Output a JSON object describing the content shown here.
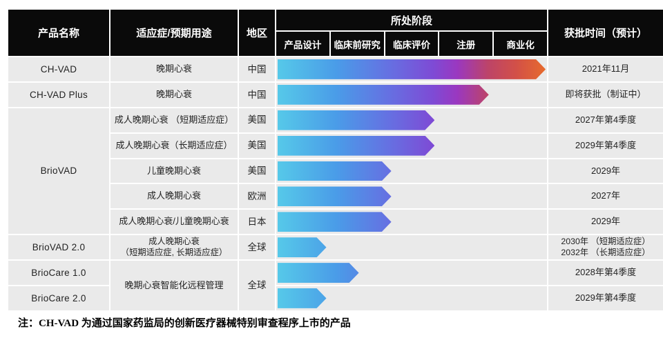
{
  "header": {
    "product": "产品名称",
    "indication": "适应症/预期用途",
    "region": "地区",
    "stage_group": "所处阶段",
    "stages": [
      "产品设计",
      "临床前研究",
      "临床评价",
      "注册",
      "商业化"
    ],
    "approval": "获批时间（预计）"
  },
  "rows": [
    {
      "product": "CH-VAD",
      "indication": "晚期心衰",
      "region": "中国",
      "progress_pct": 99,
      "stage_reached": "商业化",
      "approval": "2021年11月"
    },
    {
      "product": "CH-VAD Plus",
      "indication": "晚期心衰",
      "region": "中国",
      "progress_pct": 78,
      "stage_reached": "注册",
      "approval": "即将获批（制证中）"
    },
    {
      "product": "BrioVAD",
      "indication": "成人晚期心衰 （短期适应症）",
      "region": "美国",
      "progress_pct": 58,
      "stage_reached": "临床评价",
      "approval": "2027年第4季度"
    },
    {
      "product": "BrioVAD",
      "indication": "成人晚期心衰（长期适应症）",
      "region": "美国",
      "progress_pct": 58,
      "stage_reached": "临床评价",
      "approval": "2029年第4季度"
    },
    {
      "product": "BrioVAD",
      "indication": "儿童晚期心衰",
      "region": "美国",
      "progress_pct": 42,
      "stage_reached": "临床评价",
      "approval": "2029年"
    },
    {
      "product": "BrioVAD",
      "indication": "成人晚期心衰",
      "region": "欧洲",
      "progress_pct": 42,
      "stage_reached": "临床评价",
      "approval": "2027年"
    },
    {
      "product": "BrioVAD",
      "indication": "成人晚期心衰/儿童晚期心衰",
      "region": "日本",
      "progress_pct": 42,
      "stage_reached": "临床评价",
      "approval": "2029年"
    },
    {
      "product": "BrioVAD 2.0",
      "indication": "成人晚期心衰\n（短期适应症, 长期适应症）",
      "region": "全球",
      "progress_pct": 18,
      "stage_reached": "产品设计",
      "approval": "2030年 （短期适应症）\n2032年 （长期适应症）"
    },
    {
      "product": "BrioCare 1.0",
      "indication": "晚期心衰智能化远程管理",
      "region": "全球",
      "progress_pct": 30,
      "stage_reached": "临床前研究",
      "approval": "2028年第4季度"
    },
    {
      "product": "BrioCare 2.0",
      "indication": "晚期心衰智能化远程管理",
      "region": "全球",
      "progress_pct": 18,
      "stage_reached": "产品设计",
      "approval": "2029年第4季度"
    }
  ],
  "note": "注：CH-VAD 为通过国家药监局的创新医疗器械特别审查程序上市的产品",
  "colors": {
    "header_bg": "#0a0a0a",
    "cell_bg": "#eaeaea",
    "gradient_start": "#56c9e9",
    "gradient_mid_blue": "#4a9ce8",
    "gradient_purple": "#7e4bd5",
    "gradient_magenta": "#bd4468",
    "gradient_end": "#e86c2b"
  },
  "chart_data": {
    "type": "bar",
    "title": "所处阶段",
    "stage_axis": [
      "产品设计",
      "临床前研究",
      "临床评价",
      "注册",
      "商业化"
    ],
    "categories": [
      "CH-VAD（中国）",
      "CH-VAD Plus（中国）",
      "BrioVAD 短期适应症（美国）",
      "BrioVAD 长期适应症（美国）",
      "BrioVAD 儿童（美国）",
      "BrioVAD 成人（欧洲）",
      "BrioVAD（日本）",
      "BrioVAD 2.0（全球）",
      "BrioCare 1.0（全球）",
      "BrioCare 2.0（全球）"
    ],
    "values": [
      99,
      78,
      58,
      58,
      42,
      42,
      42,
      18,
      30,
      18
    ],
    "value_unit": "percent_of_pipeline",
    "xlabel": "",
    "ylabel": "",
    "xlim": [
      0,
      100
    ],
    "legend": "none",
    "grid": "off",
    "bar_style": "right-pointing arrow, gradient fixed to full pipeline width"
  }
}
